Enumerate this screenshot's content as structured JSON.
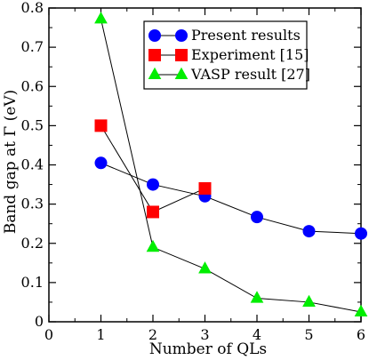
{
  "chart_data": {
    "type": "line",
    "xlabel": "Number of QLs",
    "ylabel": "Band gap at Γ (eV)",
    "xlim": [
      0,
      6
    ],
    "ylim": [
      0,
      0.8
    ],
    "xticks": [
      "0",
      "1",
      "2",
      "3",
      "4",
      "5",
      "6"
    ],
    "yticks": [
      "0",
      "0.1",
      "0.2",
      "0.3",
      "0.4",
      "0.5",
      "0.6",
      "0.7",
      "0.8"
    ],
    "grid": false,
    "legend_position": "top-right",
    "series": [
      {
        "name": "Present results",
        "marker": "circle",
        "color": "#0000ff",
        "x": [
          1,
          2,
          3,
          4,
          5,
          6
        ],
        "y": [
          0.405,
          0.35,
          0.32,
          0.267,
          0.231,
          0.225
        ]
      },
      {
        "name": "Experiment [15]",
        "marker": "square",
        "color": "#ff0000",
        "x": [
          1,
          2,
          3
        ],
        "y": [
          0.5,
          0.28,
          0.34
        ]
      },
      {
        "name": "VASP result [27]",
        "marker": "triangle",
        "color": "#00ee00",
        "x": [
          1,
          2,
          3,
          4,
          5,
          6
        ],
        "y": [
          0.772,
          0.19,
          0.135,
          0.06,
          0.05,
          0.025
        ]
      }
    ]
  }
}
